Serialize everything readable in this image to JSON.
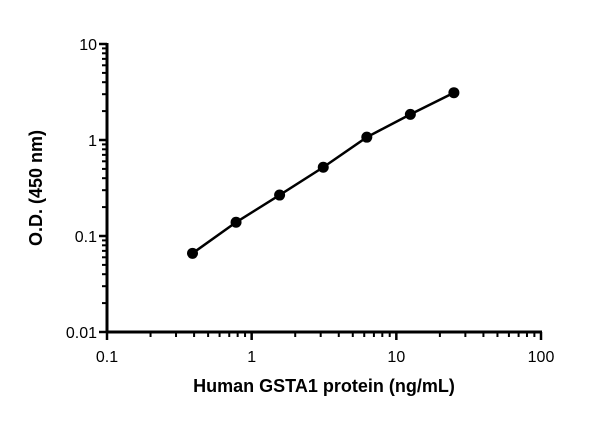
{
  "chart_data": {
    "type": "line",
    "title": "",
    "xlabel": "Human GSTA1 protein (ng/mL)",
    "ylabel": "O.D. (450 nm)",
    "xscale": "log",
    "yscale": "log",
    "xlim": [
      0.1,
      100
    ],
    "ylim": [
      0.01,
      10
    ],
    "xticks": [
      0.1,
      1,
      10,
      100
    ],
    "xtick_labels": [
      "0.1",
      "1",
      "10",
      "100"
    ],
    "yticks": [
      0.01,
      0.1,
      1,
      10
    ],
    "ytick_labels": [
      "0.01",
      "0.1",
      "1",
      "10"
    ],
    "grid": false,
    "markers": "filled-circle",
    "color": "#000000",
    "series": [
      {
        "x": [
          0.39,
          0.78,
          1.56,
          3.125,
          6.25,
          12.5,
          25
        ],
        "y": [
          0.066,
          0.139,
          0.267,
          0.52,
          1.07,
          1.85,
          3.11
        ]
      }
    ]
  }
}
